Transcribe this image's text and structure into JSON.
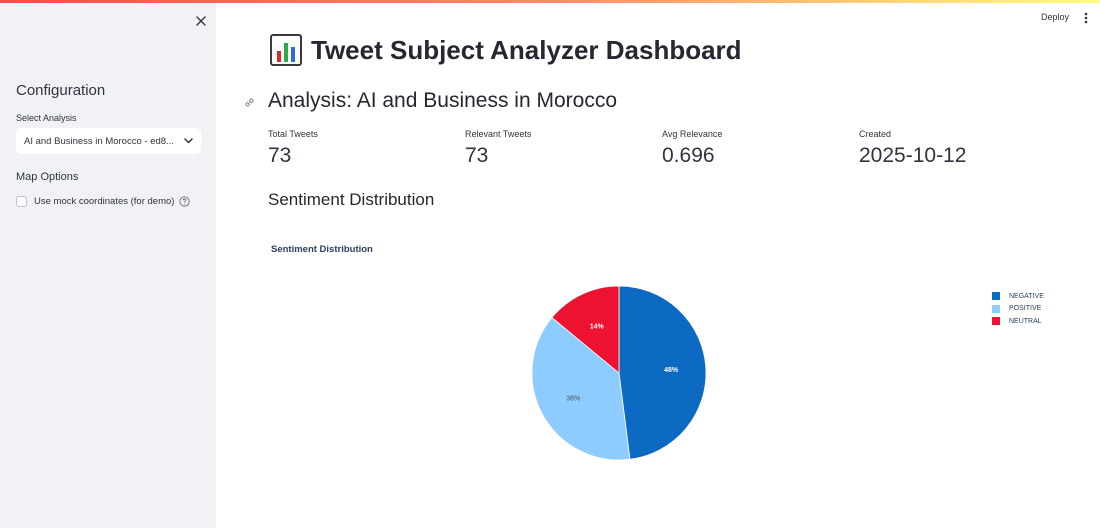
{
  "sidebar": {
    "heading": "Configuration",
    "select_label": "Select Analysis",
    "selected_analysis": "AI and Business in Morocco - ed8...",
    "map_options": "Map Options",
    "mock_coords_label": "Use mock coordinates (for demo)",
    "mock_coords_checked": false
  },
  "header": {
    "deploy_label": "Deploy"
  },
  "main": {
    "title": "Tweet Subject Analyzer Dashboard",
    "title_icon": "bar-chart-icon",
    "analysis_heading": "Analysis: AI and Business in Morocco",
    "metrics": [
      {
        "label": "Total Tweets",
        "value": "73"
      },
      {
        "label": "Relevant Tweets",
        "value": "73"
      },
      {
        "label": "Avg Relevance",
        "value": "0.696"
      },
      {
        "label": "Created",
        "value": "2025-10-12"
      }
    ],
    "section_heading": "Sentiment Distribution"
  },
  "chart_data": {
    "type": "pie",
    "title": "Sentiment Distribution",
    "labels": [
      "NEGATIVE",
      "POSITIVE",
      "NEUTRAL"
    ],
    "values": [
      48,
      38,
      14
    ],
    "text_labels": [
      "48%",
      "38%",
      "14%"
    ],
    "colors": [
      "#0d6ac3",
      "#8ecbff",
      "#ec1230"
    ],
    "label_colors": [
      "#ffffff",
      "#555555",
      "#ffffff"
    ],
    "legend_position": "top-right"
  }
}
